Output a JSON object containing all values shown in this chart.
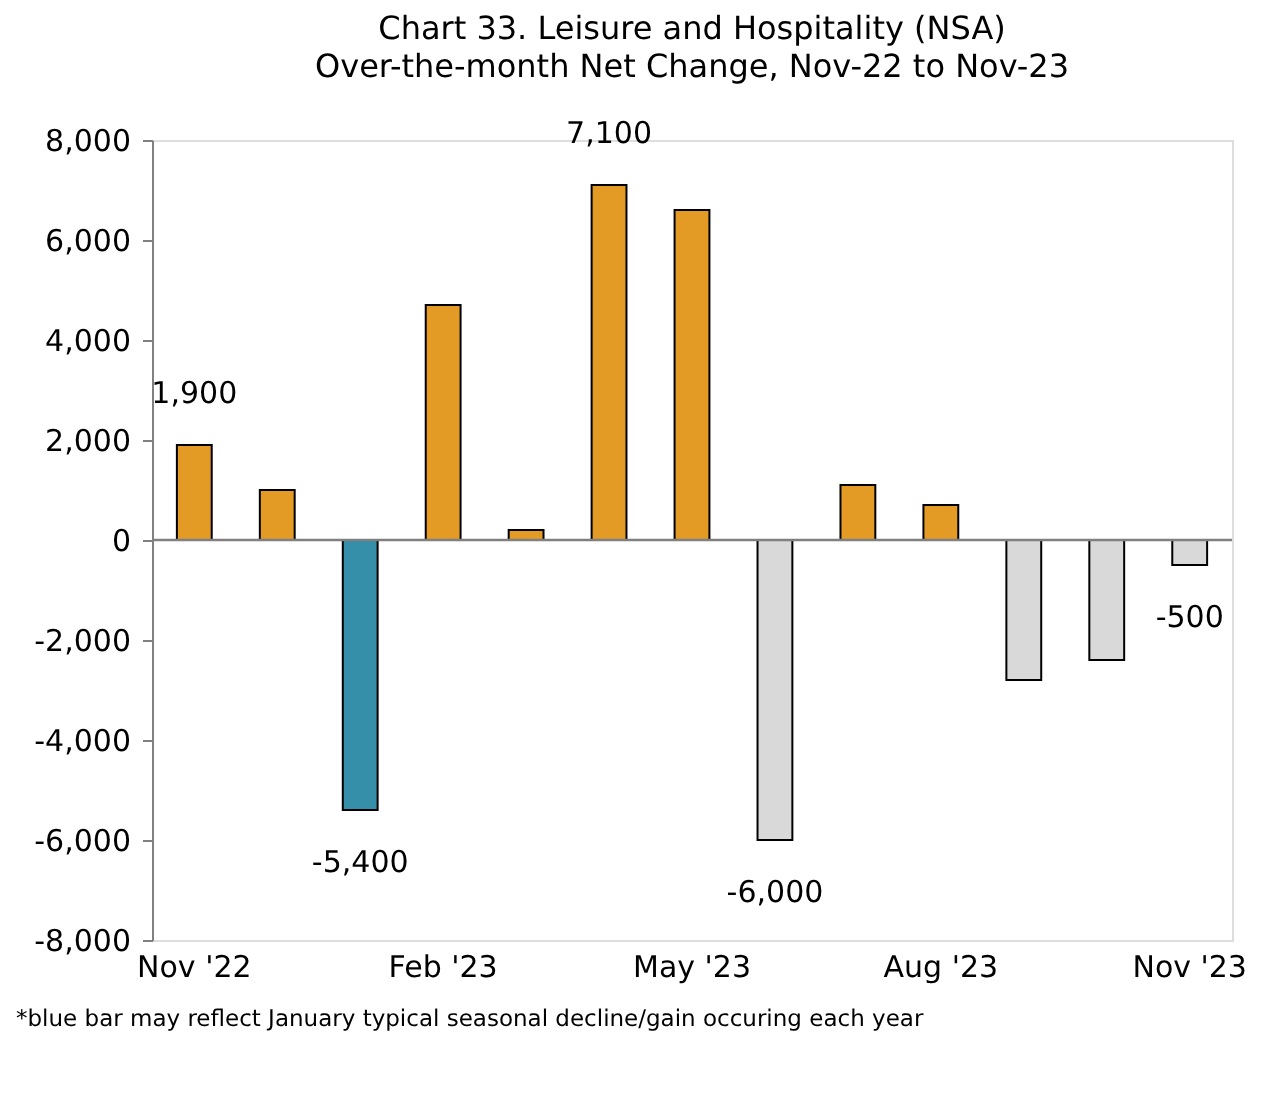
{
  "chart_data": {
    "type": "bar",
    "title": "Chart 33. Leisure and Hospitality (NSA)",
    "subtitle": "Over-the-month Net Change, Nov-22 to Nov-23",
    "categories": [
      "Nov '22",
      null,
      null,
      "Feb '23",
      null,
      null,
      "May '23",
      null,
      null,
      "Aug '23",
      null,
      null,
      "Nov '23"
    ],
    "values": [
      1900,
      1000,
      -5400,
      4700,
      200,
      7100,
      6600,
      -6000,
      1100,
      700,
      -2800,
      -2400,
      -500
    ],
    "colors": [
      "#e39b26",
      "#e39b26",
      "#358fa8",
      "#e39b26",
      "#e39b26",
      "#e39b26",
      "#e39b26",
      "#d9d9d9",
      "#e39b26",
      "#e39b26",
      "#d9d9d9",
      "#d9d9d9",
      "#d9d9d9"
    ],
    "value_labels": [
      "1,900",
      null,
      "-5,400",
      null,
      null,
      "7,100",
      null,
      "-6,000",
      null,
      null,
      null,
      null,
      "-500"
    ],
    "ylim": [
      -8000,
      8000
    ],
    "yticks": [
      {
        "value": -8000,
        "label": "-8,000"
      },
      {
        "value": -6000,
        "label": "-6,000"
      },
      {
        "value": -4000,
        "label": "-4,000"
      },
      {
        "value": -2000,
        "label": "-2,000"
      },
      0,
      {
        "value": 2000,
        "label": "2,000"
      },
      {
        "value": 4000,
        "label": "4,000"
      },
      {
        "value": 6000,
        "label": "6,000"
      },
      {
        "value": 8000,
        "label": "8,000"
      }
    ],
    "ref_lines": [
      {
        "axis": "y",
        "value": 0,
        "color": "#808080"
      }
    ],
    "grid": false,
    "annotations": [
      "*blue bar may reflect January typical seasonal decline/gain occuring each year"
    ]
  }
}
